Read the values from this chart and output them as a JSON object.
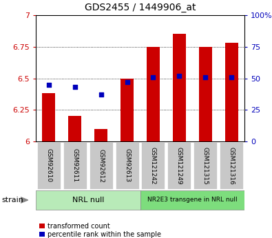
{
  "title": "GDS2455 / 1449906_at",
  "samples": [
    "GSM92610",
    "GSM92611",
    "GSM92612",
    "GSM92613",
    "GSM121242",
    "GSM121249",
    "GSM121315",
    "GSM121316"
  ],
  "transformed_counts": [
    6.38,
    6.2,
    6.1,
    6.5,
    6.75,
    6.85,
    6.75,
    6.78
  ],
  "percentile_ranks": [
    45,
    43,
    37,
    47,
    51,
    52,
    51,
    51
  ],
  "ylim_left": [
    6.0,
    7.0
  ],
  "ylim_right": [
    0,
    100
  ],
  "yticks_left": [
    6.0,
    6.25,
    6.5,
    6.75,
    7.0
  ],
  "yticks_right": [
    0,
    25,
    50,
    75,
    100
  ],
  "ytick_labels_left": [
    "6",
    "6.25",
    "6.5",
    "6.75",
    "7"
  ],
  "ytick_labels_right": [
    "0",
    "25",
    "50",
    "75",
    "100%"
  ],
  "groups": [
    {
      "label": "NRL null",
      "indices": [
        0,
        1,
        2,
        3
      ],
      "color": "#b8eab8"
    },
    {
      "label": "NR2E3 transgene in NRL null",
      "indices": [
        4,
        5,
        6,
        7
      ],
      "color": "#7ddd7d"
    }
  ],
  "bar_color": "#cc0000",
  "dot_color": "#0000bb",
  "bar_width": 0.5,
  "left_tick_color": "#cc0000",
  "right_tick_color": "#0000bb",
  "strain_label": "strain",
  "legend_items": [
    "transformed count",
    "percentile rank within the sample"
  ],
  "bg_color": "#ffffff",
  "tick_label_bg": "#c8c8c8",
  "sample_label_fontsize": 6.5,
  "group_label_fontsize": 8,
  "group2_label_fontsize": 6.5,
  "title_fontsize": 10
}
